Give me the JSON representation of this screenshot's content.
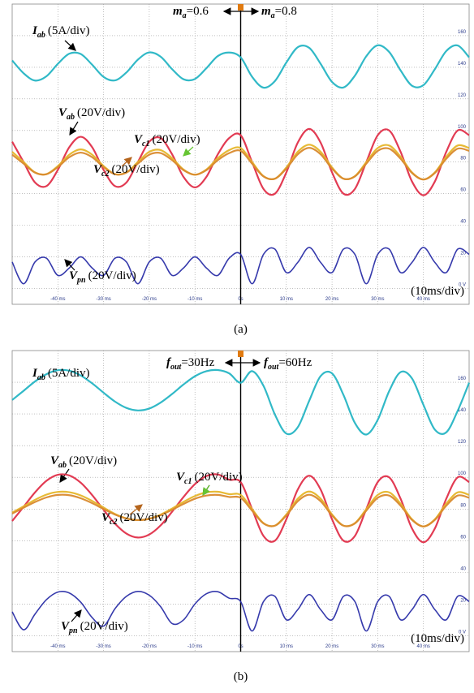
{
  "chart_data": [
    {
      "type": "line",
      "x": [
        -50,
        -47.5,
        -45,
        -42.5,
        -40,
        -37.5,
        -35,
        -32.5,
        -30,
        -27.5,
        -25,
        -22.5,
        -20,
        -17.5,
        -15,
        -12.5,
        -10,
        -7.5,
        -5,
        -2.5,
        0,
        2.5,
        5,
        7.5,
        10,
        12.5,
        15,
        17.5,
        20,
        22.5,
        25,
        27.5,
        30,
        32.5,
        35,
        37.5,
        40,
        42.5,
        45,
        47.5,
        50
      ],
      "xlim": [
        -50,
        50
      ],
      "xticks": [
        {
          "value": -40,
          "label": "-40 ms"
        },
        {
          "value": -30,
          "label": "-30 ms"
        },
        {
          "value": -20,
          "label": "-20 ms"
        },
        {
          "value": -10,
          "label": "-10 ms"
        },
        {
          "value": 0,
          "label": "0s"
        },
        {
          "value": 10,
          "label": "10 ms"
        },
        {
          "value": 20,
          "label": "20 ms"
        },
        {
          "value": 30,
          "label": "30 ms"
        },
        {
          "value": 40,
          "label": "40 ms"
        }
      ],
      "ylim": [
        -10,
        180
      ],
      "yticks": [
        {
          "value": 0,
          "label": "0 V"
        },
        20,
        40,
        60,
        80,
        100,
        120,
        140,
        160
      ],
      "grid": true,
      "series": [
        {
          "symbol": "I",
          "subscript": "ab",
          "scale": "(5A/div)",
          "color": "#26b5c4",
          "values": [
            144.3,
            136.2,
            131.6,
            134.3,
            142.2,
            148.6,
            148.4,
            141.6,
            133.9,
            131.7,
            136.7,
            144.8,
            149.4,
            146.7,
            138.8,
            132.4,
            132.6,
            139.4,
            147.1,
            149.3,
            146.3,
            134.0,
            127.1,
            131.3,
            143.0,
            152.7,
            152.3,
            142.2,
            130.7,
            127.2,
            134.7,
            147.0,
            153.9,
            149.7,
            138.0,
            128.3,
            128.7,
            138.8,
            150.3,
            153.8,
            146.3
          ]
        },
        {
          "symbol": "V",
          "subscript": "ab",
          "scale": "(20V/div)",
          "color": "#e0304a",
          "values": [
            92.9,
            80,
            67.1,
            64.8,
            75.1,
            89.4,
            96,
            89.4,
            75.1,
            64.8,
            67.1,
            80,
            92.9,
            95.2,
            84.9,
            70.6,
            64,
            70.6,
            84.9,
            95.2,
            97,
            80,
            63,
            60,
            73.5,
            92.3,
            101,
            92.3,
            73.5,
            60,
            63,
            80,
            97,
            100,
            86.5,
            67.7,
            59,
            67.7,
            86.5,
            100,
            97
          ]
        },
        {
          "symbol": "V",
          "subscript": "c1",
          "scale": "(20V/div)",
          "color": "#e6b62a",
          "values": [
            86.5,
            80,
            73.5,
            72.4,
            77.5,
            84.7,
            88,
            84.7,
            77.5,
            72.4,
            73.5,
            80,
            86.5,
            87.6,
            82.5,
            75.3,
            72,
            75.3,
            82.5,
            87.6,
            88.9,
            80,
            71.1,
            69.5,
            76.6,
            86.5,
            91,
            86.5,
            76.6,
            69.5,
            71.1,
            80,
            88.9,
            90.5,
            83.4,
            73.5,
            69,
            73.5,
            83.4,
            90.5,
            88.9
          ]
        },
        {
          "symbol": "V",
          "subscript": "c2",
          "scale": "(20V/div)",
          "color": "#d98a2e",
          "values": [
            84.7,
            79,
            73.3,
            72.3,
            76.8,
            83.1,
            86,
            83.1,
            76.8,
            72.3,
            73.3,
            79,
            84.7,
            85.7,
            81.2,
            74.9,
            72,
            74.9,
            81.2,
            85.7,
            87.1,
            79,
            70.9,
            69.5,
            75.9,
            84.9,
            89,
            84.9,
            75.9,
            69.5,
            70.9,
            79,
            87.1,
            88.5,
            82.1,
            73.1,
            69,
            73.1,
            82.1,
            88.5,
            87.1
          ]
        },
        {
          "symbol": "V",
          "subscript": "pn",
          "scale": "(20V/div)",
          "color": "#2b2fa8",
          "values": [
            16.8,
            3,
            16.8,
            19.2,
            8.3,
            13,
            20,
            13,
            8.3,
            19.2,
            16.8,
            3,
            16.8,
            19.2,
            8.3,
            13,
            20,
            13,
            8.3,
            19.2,
            21.6,
            3,
            21.6,
            24.9,
            10.1,
            16.5,
            26,
            16.5,
            10.1,
            24.9,
            21.6,
            3,
            21.6,
            24.9,
            10.1,
            16.5,
            26,
            16.5,
            10.1,
            24.9,
            21.6
          ]
        }
      ],
      "annotations": [
        {
          "symbol": "m",
          "subscript": "a",
          "text": "=0.6"
        },
        {
          "symbol": "m",
          "subscript": "a",
          "text": "=0.8"
        }
      ],
      "scale_note": "(10ms/div)",
      "caption": "(a)"
    },
    {
      "type": "line",
      "x": [
        -50,
        -47.5,
        -45,
        -42.5,
        -40,
        -37.5,
        -35,
        -32.5,
        -30,
        -27.5,
        -25,
        -22.5,
        -20,
        -17.5,
        -15,
        -12.5,
        -10,
        -7.5,
        -5,
        -2.5,
        0,
        2.5,
        5,
        7.5,
        10,
        12.5,
        15,
        17.5,
        20,
        22.5,
        25,
        27.5,
        30,
        32.5,
        35,
        37.5,
        40,
        42.5,
        45,
        47.5,
        50
      ],
      "xlim": [
        -50,
        50
      ],
      "xticks": [
        {
          "value": -40,
          "label": "-40 ms"
        },
        {
          "value": -30,
          "label": "-30 ms"
        },
        {
          "value": -20,
          "label": "-20 ms"
        },
        {
          "value": -10,
          "label": "-10 ms"
        },
        {
          "value": 0,
          "label": "0s"
        },
        {
          "value": 10,
          "label": "10 ms"
        },
        {
          "value": 20,
          "label": "20 ms"
        },
        {
          "value": 30,
          "label": "30 ms"
        },
        {
          "value": 40,
          "label": "40 ms"
        }
      ],
      "ylim": [
        -10,
        180
      ],
      "yticks": [
        {
          "value": 0,
          "label": "0 V"
        },
        20,
        40,
        60,
        80,
        100,
        120,
        140,
        160
      ],
      "grid": true,
      "series": [
        {
          "symbol": "I",
          "subscript": "ab",
          "scale": "(5A/div)",
          "color": "#26b5c4",
          "values": [
            148.8,
            154.6,
            160.5,
            165.1,
            167.6,
            167.3,
            164.3,
            159.3,
            153.4,
            147.8,
            143.8,
            142.2,
            143.4,
            147.2,
            152.6,
            158.6,
            163.8,
            167.0,
            167.7,
            165.6,
            159.7,
            167.0,
            157.7,
            139.6,
            127.6,
            131.6,
            148.3,
            163.9,
            165.6,
            152.0,
            134.3,
            127.0,
            136.3,
            154.4,
            166.4,
            162.4,
            145.7,
            130.1,
            128.4,
            142.0,
            159.7
          ]
        },
        {
          "symbol": "V",
          "subscript": "ab",
          "scale": "(20V/div)",
          "color": "#e0304a",
          "values": [
            72.4,
            81.4,
            90.5,
            97.8,
            101.6,
            101.2,
            96.6,
            88.8,
            79.5,
            70.8,
            64.5,
            62,
            63.9,
            69.7,
            78.3,
            87.6,
            95.7,
            100.8,
            101.8,
            98.5,
            97,
            80,
            63,
            60,
            73.5,
            92.3,
            101,
            92.3,
            73.5,
            60,
            63,
            80,
            97,
            100,
            86.5,
            67.7,
            59,
            67.7,
            86.5,
            100,
            97
          ]
        },
        {
          "symbol": "V",
          "subscript": "c1",
          "scale": "(20V/div)",
          "color": "#e6b62a",
          "values": [
            77.7,
            81.7,
            85.8,
            89.1,
            90.8,
            90.6,
            88.6,
            85.1,
            80.9,
            76.9,
            74.1,
            73,
            73.9,
            76.5,
            80.3,
            84.5,
            88.2,
            90.5,
            90.9,
            89.4,
            88.9,
            80,
            71.1,
            69.5,
            76.6,
            86.5,
            91,
            86.5,
            76.6,
            69.5,
            71.1,
            80,
            88.9,
            90.5,
            83.4,
            73.5,
            69,
            73.5,
            83.4,
            90.5,
            88.9
          ]
        },
        {
          "symbol": "V",
          "subscript": "c2",
          "scale": "(20V/div)",
          "color": "#d98a2e",
          "values": [
            77.1,
            80.8,
            84.4,
            87.3,
            88.9,
            88.7,
            86.8,
            83.7,
            80,
            76.5,
            74,
            73,
            73.8,
            76.1,
            79.5,
            83.2,
            86.5,
            88.5,
            88.9,
            87.6,
            87.1,
            79,
            70.9,
            69.5,
            75.9,
            84.9,
            89,
            84.9,
            75.9,
            69.5,
            70.9,
            79,
            87.1,
            88.5,
            82.1,
            73.1,
            69,
            73.1,
            82.1,
            88.5,
            87.1
          ]
        },
        {
          "symbol": "V",
          "subscript": "pn",
          "scale": "(20V/div)",
          "color": "#2b2fa8",
          "values": [
            15.1,
            3.8,
            13.7,
            22.8,
            27.6,
            27,
            21.2,
            11.5,
            6.1,
            17.1,
            24.9,
            28,
            25.6,
            18.3,
            7.7,
            10,
            20.1,
            26.5,
            27.8,
            23.7,
            21.6,
            3,
            21.6,
            24.9,
            10.1,
            16.5,
            26,
            16.5,
            10.1,
            24.9,
            21.6,
            3,
            21.6,
            24.9,
            10.1,
            16.5,
            26,
            16.5,
            10.1,
            24.9,
            21.6
          ]
        }
      ],
      "annotations": [
        {
          "symbol": "f",
          "subscript": "out",
          "text": "=30Hz"
        },
        {
          "symbol": "f",
          "subscript": "out",
          "text": "=60Hz"
        }
      ],
      "scale_note": "(10ms/div)",
      "caption": "(b)"
    }
  ]
}
